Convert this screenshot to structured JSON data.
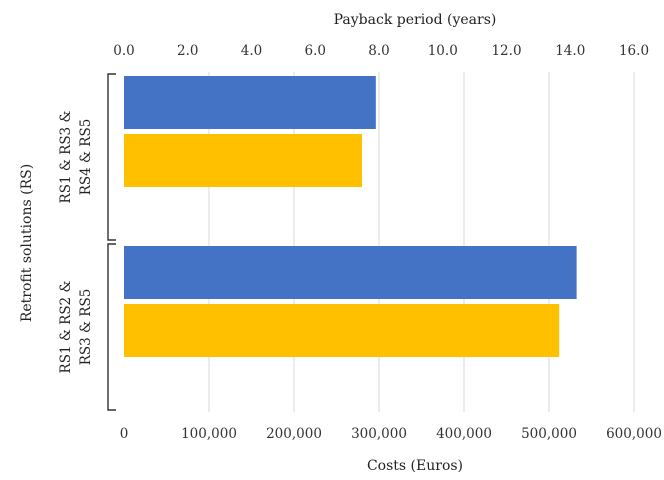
{
  "chart_data": {
    "type": "bar",
    "orientation": "horizontal",
    "grid": true,
    "ylabel": "Retrofit solutions (RS)",
    "categories": [
      {
        "lines": [
          "RS1 & RS3 &",
          "RS4 & RS5"
        ]
      },
      {
        "lines": [
          "RS1 & RS2 &",
          "RS3 & RS5"
        ]
      }
    ],
    "cost_axis": {
      "label": "Costs (Euros)",
      "range": [
        0,
        600000
      ],
      "ticks": [
        0,
        100000,
        200000,
        300000,
        400000,
        500000,
        600000
      ],
      "tick_labels": [
        "0",
        "100,000",
        "200,000",
        "300,000",
        "400,000",
        "500,000",
        "600,000"
      ]
    },
    "payback_axis": {
      "label": "Payback period (years)",
      "range": [
        0,
        16
      ],
      "ticks": [
        0,
        2,
        4,
        6,
        8,
        10,
        12,
        14,
        16
      ],
      "tick_labels": [
        "0.0",
        "2.0",
        "4.0",
        "6.0",
        "8.0",
        "10.0",
        "12.0",
        "14.0",
        "16.0"
      ]
    },
    "series": [
      {
        "axis": "payback",
        "color": "#4472C4",
        "values": [
          7.9,
          14.2
        ]
      },
      {
        "axis": "cost",
        "color": "#FFC000",
        "values": [
          280000,
          512000
        ]
      }
    ]
  }
}
